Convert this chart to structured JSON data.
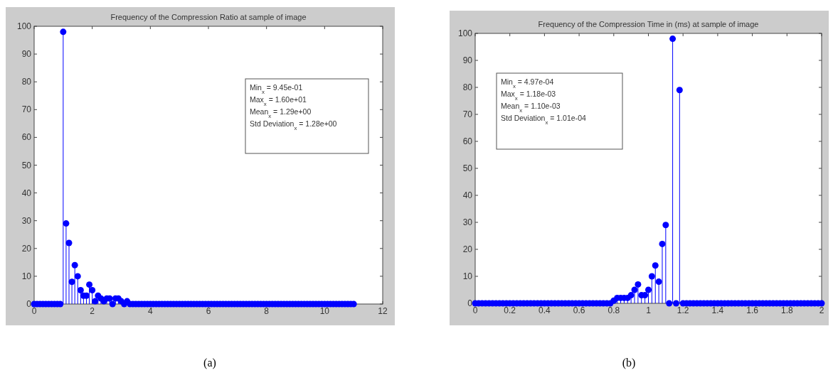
{
  "chart_data": [
    {
      "type": "lollipop",
      "title": "Frequency of the Compression Ratio at sample of image",
      "marker": "circle",
      "grid": false,
      "x": [
        0,
        0.1,
        0.2,
        0.3,
        0.4,
        0.5,
        0.6,
        0.7,
        0.8,
        0.9,
        1,
        1.1,
        1.2,
        1.3,
        1.4,
        1.5,
        1.6,
        1.7,
        1.8,
        1.9,
        2,
        2.1,
        2.2,
        2.3,
        2.4,
        2.5,
        2.6,
        2.7,
        2.8,
        2.9,
        3,
        3.1,
        3.2,
        3.3,
        3.4,
        3.5,
        3.6,
        3.7,
        3.8,
        3.9,
        4,
        4.1,
        4.2,
        4.3,
        4.4,
        4.5,
        4.6,
        4.7,
        4.8,
        4.9,
        5,
        5.1,
        5.2,
        5.3,
        5.4,
        5.5,
        5.6,
        5.7,
        5.8,
        5.9,
        6,
        6.1,
        6.2,
        6.3,
        6.4,
        6.5,
        6.6,
        6.7,
        6.8,
        6.9,
        7,
        7.1,
        7.2,
        7.3,
        7.4,
        7.5,
        7.6,
        7.7,
        7.8,
        7.9,
        8,
        8.1,
        8.2,
        8.3,
        8.4,
        8.5,
        8.6,
        8.7,
        8.8,
        8.9,
        9,
        9.1,
        9.2,
        9.3,
        9.4,
        9.5,
        9.6,
        9.7,
        9.8,
        9.9,
        10,
        10.1,
        10.2,
        10.3,
        10.4,
        10.5,
        10.6,
        10.7,
        10.8,
        10.9,
        11
      ],
      "series": [
        {
          "color": "#0000ff",
          "values": [
            0,
            0,
            0,
            0,
            0,
            0,
            0,
            0,
            0,
            0,
            98,
            29,
            22,
            8,
            14,
            10,
            5,
            3,
            3,
            7,
            5,
            1,
            3,
            2,
            1,
            2,
            2,
            0,
            2,
            2,
            1,
            0,
            1,
            0,
            0,
            0,
            0,
            0,
            0,
            0,
            0,
            0,
            0,
            0,
            0,
            0,
            0,
            0,
            0,
            0,
            0,
            0,
            0,
            0,
            0,
            0,
            0,
            0,
            0,
            0,
            0,
            0,
            0,
            0,
            0,
            0,
            0,
            0,
            0,
            0,
            0,
            0,
            0,
            0,
            0,
            0,
            0,
            0,
            0,
            0,
            0,
            0,
            0,
            0,
            0,
            0,
            0,
            0,
            0,
            0,
            0,
            0,
            0,
            0,
            0,
            0,
            0,
            0,
            0,
            0,
            0,
            0,
            0,
            0,
            0,
            0,
            0,
            0,
            0,
            0,
            0
          ]
        }
      ],
      "xlim": [
        0,
        12
      ],
      "xticks": [
        0,
        2,
        4,
        6,
        8,
        10,
        12
      ],
      "ylim": [
        0,
        100
      ],
      "yticks": [
        0,
        10,
        20,
        30,
        40,
        50,
        60,
        70,
        80,
        90,
        100
      ],
      "annotations": [
        "Min$_{x}$ = 9.45e-01",
        "Max$_{x}$ = 1.60e+01",
        "Mean$_{x}$ = 1.29e+00",
        "Std Deviation$_{x}$ = 1.28e+00",
        "(a)"
      ]
    },
    {
      "type": "lollipop",
      "title": "Frequency of the Compression Time in (ms) at sample of image",
      "marker": "circle",
      "grid": false,
      "x": [
        0,
        0.02,
        0.04,
        0.06,
        0.08,
        0.1,
        0.12,
        0.14,
        0.16,
        0.18,
        0.2,
        0.22,
        0.24,
        0.26,
        0.28,
        0.3,
        0.32,
        0.34,
        0.36,
        0.38,
        0.4,
        0.42,
        0.44,
        0.46,
        0.48,
        0.5,
        0.52,
        0.54,
        0.56,
        0.58,
        0.6,
        0.62,
        0.64,
        0.66,
        0.68,
        0.7,
        0.72,
        0.74,
        0.76,
        0.78,
        0.8,
        0.82,
        0.84,
        0.86,
        0.88,
        0.9,
        0.92,
        0.94,
        0.96,
        0.98,
        1,
        1.02,
        1.04,
        1.06,
        1.08,
        1.1,
        1.12,
        1.14,
        1.16,
        1.18,
        1.2,
        1.22,
        1.24,
        1.26,
        1.28,
        1.3,
        1.32,
        1.34,
        1.36,
        1.38,
        1.4,
        1.42,
        1.44,
        1.46,
        1.48,
        1.5,
        1.52,
        1.54,
        1.56,
        1.58,
        1.6,
        1.62,
        1.64,
        1.66,
        1.68,
        1.7,
        1.72,
        1.74,
        1.76,
        1.78,
        1.8,
        1.82,
        1.84,
        1.86,
        1.88,
        1.9,
        1.92,
        1.94,
        1.96,
        1.98,
        2
      ],
      "series": [
        {
          "color": "#0000ff",
          "values": [
            0,
            0,
            0,
            0,
            0,
            0,
            0,
            0,
            0,
            0,
            0,
            0,
            0,
            0,
            0,
            0,
            0,
            0,
            0,
            0,
            0,
            0,
            0,
            0,
            0,
            0,
            0,
            0,
            0,
            0,
            0,
            0,
            0,
            0,
            0,
            0,
            0,
            0,
            0,
            0,
            1,
            2,
            2,
            2,
            2,
            3,
            5,
            7,
            3,
            3,
            5,
            10,
            14,
            8,
            22,
            29,
            0,
            98,
            0,
            79,
            0,
            0,
            0,
            0,
            0,
            0,
            0,
            0,
            0,
            0,
            0,
            0,
            0,
            0,
            0,
            0,
            0,
            0,
            0,
            0,
            0,
            0,
            0,
            0,
            0,
            0,
            0,
            0,
            0,
            0,
            0,
            0,
            0,
            0,
            0,
            0,
            0,
            0,
            0,
            0,
            0
          ]
        }
      ],
      "xlim": [
        0,
        2
      ],
      "xticks": [
        0,
        0.2,
        0.4,
        0.6,
        0.8,
        1,
        1.2,
        1.4,
        1.6,
        1.8,
        2
      ],
      "ylim": [
        0,
        100
      ],
      "yticks": [
        0,
        10,
        20,
        30,
        40,
        50,
        60,
        70,
        80,
        90,
        100
      ],
      "annotations": [
        "Min$_{x}$ = 4.97e-04",
        "Max$_{x}$ = 1.18e-03",
        "Mean$_{x}$ = 1.10e-03",
        "Std Deviation$_{x}$ = 1.01e-04",
        "(b)"
      ]
    }
  ]
}
